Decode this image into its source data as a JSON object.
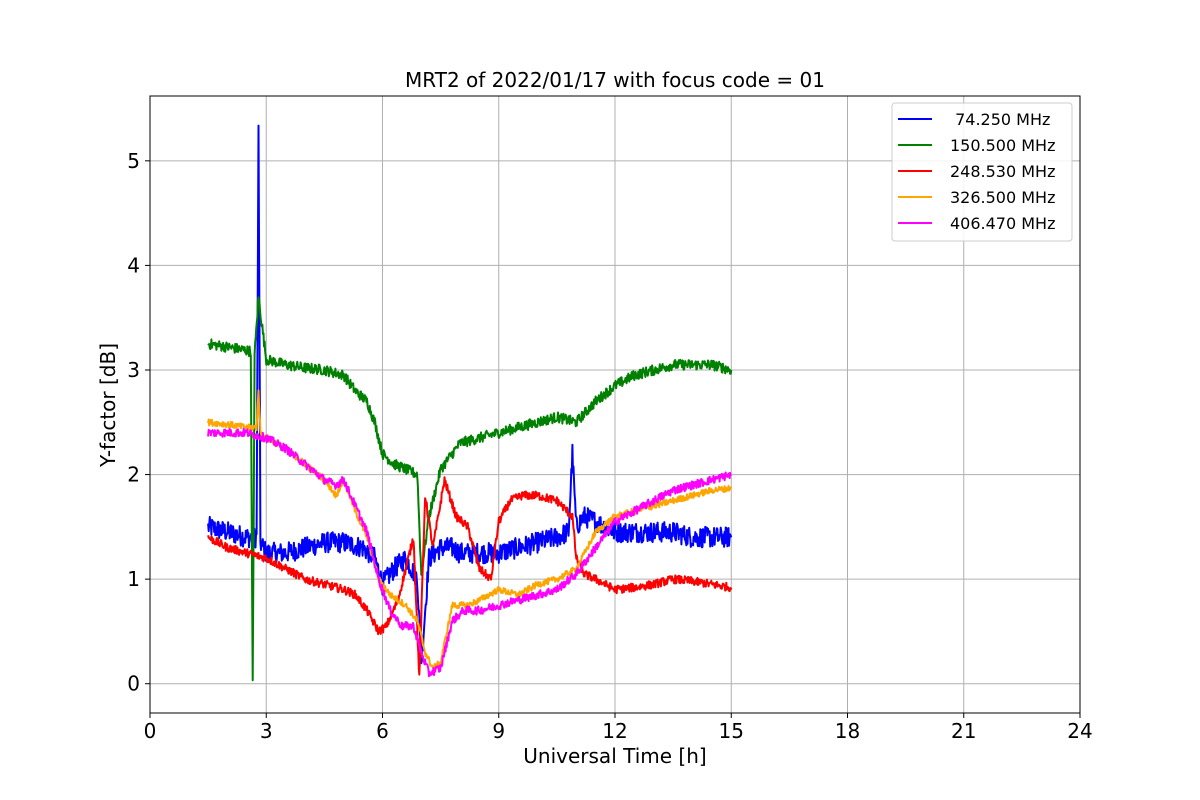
{
  "chart_data": {
    "type": "line",
    "title": "MRT2 of 2022/01/17 with focus code = 01",
    "xlabel": "Universal Time [h]",
    "ylabel": "Y-factor [dB]",
    "xlim": [
      0,
      24
    ],
    "ylim": [
      -0.28,
      5.62
    ],
    "xticks": [
      0,
      3,
      6,
      9,
      12,
      15,
      18,
      21,
      24
    ],
    "xtick_labels": [
      "0",
      "3",
      "6",
      "9",
      "12",
      "15",
      "18",
      "21",
      "24"
    ],
    "yticks": [
      0,
      1,
      2,
      3,
      4,
      5
    ],
    "ytick_labels": [
      "0",
      "1",
      "2",
      "3",
      "4",
      "5"
    ],
    "grid": true,
    "legend_position": "top-right",
    "series": [
      {
        "name": " 74.250 MHz",
        "color": "#0000ff",
        "noise": 0.1,
        "x": [
          1.5,
          2.0,
          2.5,
          2.75,
          2.8,
          2.85,
          3.0,
          3.5,
          4.0,
          4.5,
          5.0,
          5.5,
          5.8,
          6.0,
          6.3,
          6.6,
          6.9,
          7.0,
          7.2,
          7.5,
          7.8,
          8.0,
          8.5,
          9.0,
          9.5,
          10.0,
          10.5,
          10.8,
          10.9,
          11.0,
          11.2,
          11.5,
          12.0,
          12.5,
          13.0,
          13.5,
          14.0,
          14.5,
          15.0
        ],
        "y": [
          1.5,
          1.45,
          1.4,
          1.4,
          5.3,
          1.35,
          1.25,
          1.25,
          1.3,
          1.35,
          1.35,
          1.3,
          1.2,
          0.95,
          1.1,
          1.2,
          1.0,
          0.2,
          1.2,
          1.3,
          1.3,
          1.25,
          1.25,
          1.25,
          1.3,
          1.35,
          1.4,
          1.45,
          2.2,
          1.5,
          1.6,
          1.55,
          1.45,
          1.45,
          1.45,
          1.45,
          1.4,
          1.4,
          1.4
        ]
      },
      {
        "name": "150.500 MHz",
        "color": "#008000",
        "noise": 0.05,
        "x": [
          1.5,
          2.0,
          2.6,
          2.65,
          2.7,
          2.8,
          3.0,
          3.5,
          4.0,
          4.5,
          5.0,
          5.3,
          5.6,
          5.8,
          6.0,
          6.3,
          6.6,
          6.9,
          7.0,
          7.2,
          7.5,
          8.0,
          8.5,
          9.0,
          9.5,
          10.0,
          10.5,
          11.0,
          11.5,
          12.0,
          12.5,
          13.0,
          13.5,
          14.0,
          14.5,
          15.0
        ],
        "y": [
          3.25,
          3.22,
          3.18,
          0.0,
          3.15,
          3.7,
          3.1,
          3.05,
          3.02,
          3.0,
          2.95,
          2.8,
          2.7,
          2.5,
          2.2,
          2.1,
          2.05,
          2.0,
          1.05,
          1.6,
          2.05,
          2.3,
          2.35,
          2.4,
          2.45,
          2.5,
          2.55,
          2.5,
          2.7,
          2.85,
          2.95,
          3.0,
          3.05,
          3.05,
          3.05,
          3.0
        ]
      },
      {
        "name": "248.530 MHz",
        "color": "#ff0000",
        "noise": 0.04,
        "x": [
          1.5,
          2.0,
          2.5,
          3.0,
          3.5,
          4.0,
          4.5,
          5.0,
          5.3,
          5.6,
          5.9,
          6.1,
          6.4,
          6.6,
          6.8,
          6.95,
          7.1,
          7.3,
          7.6,
          7.9,
          8.2,
          8.5,
          8.8,
          9.0,
          9.3,
          9.6,
          10.0,
          10.5,
          10.9,
          11.0,
          11.2,
          11.5,
          12.0,
          12.5,
          13.0,
          13.5,
          14.0,
          14.5,
          15.0
        ],
        "y": [
          1.4,
          1.3,
          1.25,
          1.2,
          1.1,
          1.0,
          0.95,
          0.9,
          0.85,
          0.7,
          0.5,
          0.55,
          0.8,
          1.1,
          1.4,
          0.05,
          1.8,
          1.3,
          1.95,
          1.6,
          1.5,
          1.1,
          1.0,
          1.55,
          1.75,
          1.8,
          1.8,
          1.75,
          1.6,
          1.2,
          1.05,
          1.0,
          0.9,
          0.92,
          0.95,
          1.0,
          0.98,
          0.95,
          0.92
        ]
      },
      {
        "name": "326.500 MHz",
        "color": "#ffa500",
        "noise": 0.03,
        "x": [
          1.5,
          2.0,
          2.5,
          2.75,
          2.8,
          2.85,
          3.0,
          3.5,
          4.0,
          4.5,
          4.8,
          5.0,
          5.3,
          5.6,
          5.9,
          6.2,
          6.6,
          6.9,
          7.1,
          7.3,
          7.5,
          7.8,
          8.2,
          8.5,
          9.0,
          9.5,
          10.0,
          10.5,
          11.0,
          11.5,
          12.0,
          12.5,
          13.0,
          13.5,
          14.0,
          14.5,
          15.0
        ],
        "y": [
          2.5,
          2.48,
          2.45,
          2.45,
          2.8,
          2.4,
          2.35,
          2.25,
          2.1,
          1.95,
          1.8,
          1.95,
          1.65,
          1.4,
          1.0,
          0.85,
          0.75,
          0.6,
          0.3,
          0.15,
          0.2,
          0.75,
          0.75,
          0.8,
          0.9,
          0.85,
          0.95,
          1.0,
          1.1,
          1.45,
          1.6,
          1.65,
          1.7,
          1.75,
          1.8,
          1.85,
          1.87
        ]
      },
      {
        "name": "406.470 MHz",
        "color": "#ff00ff",
        "noise": 0.04,
        "x": [
          1.5,
          2.0,
          2.5,
          3.0,
          3.5,
          4.0,
          4.5,
          4.8,
          5.0,
          5.3,
          5.6,
          5.9,
          6.2,
          6.5,
          6.8,
          7.0,
          7.2,
          7.5,
          7.8,
          8.1,
          8.5,
          9.0,
          9.5,
          10.0,
          10.5,
          11.0,
          11.5,
          12.0,
          12.5,
          13.0,
          13.5,
          14.0,
          14.5,
          15.0
        ],
        "y": [
          2.4,
          2.4,
          2.4,
          2.35,
          2.25,
          2.1,
          1.95,
          1.9,
          1.95,
          1.7,
          1.45,
          1.0,
          0.7,
          0.55,
          0.55,
          0.3,
          0.1,
          0.15,
          0.6,
          0.7,
          0.7,
          0.75,
          0.8,
          0.85,
          0.9,
          1.05,
          1.3,
          1.55,
          1.65,
          1.75,
          1.85,
          1.9,
          1.95,
          2.0
        ]
      }
    ]
  }
}
